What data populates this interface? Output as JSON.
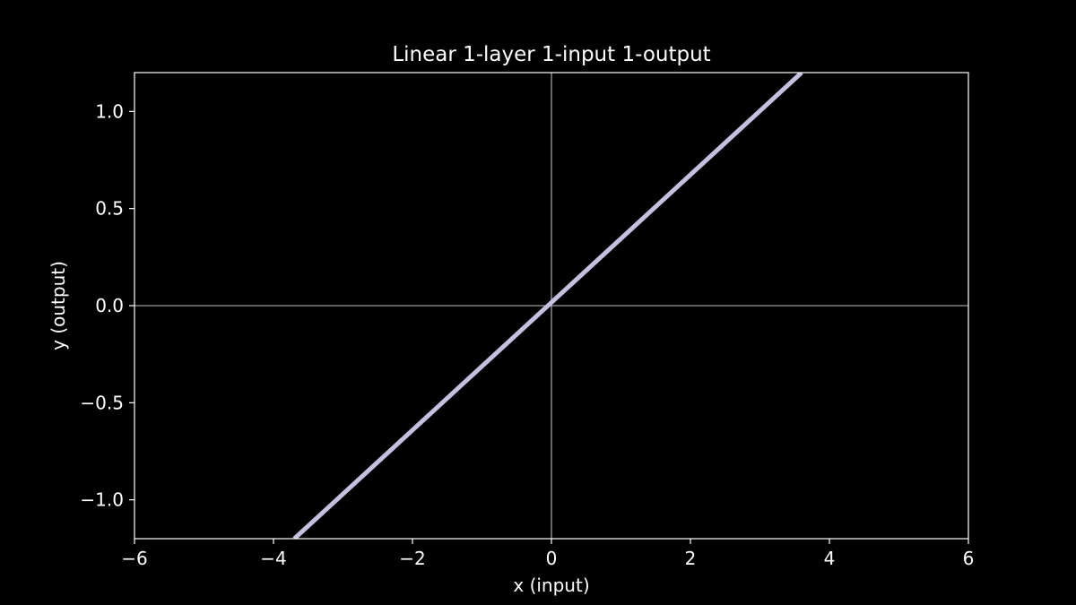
{
  "chart_data": {
    "type": "line",
    "title": "Linear 1-layer 1-input 1-output",
    "xlabel": "x (input)",
    "ylabel": "y (output)",
    "xlim": [
      -6,
      6
    ],
    "ylim": [
      -1.2,
      1.2
    ],
    "x_ticks": [
      -6,
      -4,
      -2,
      0,
      2,
      4,
      6
    ],
    "x_tick_labels": [
      "−6",
      "−4",
      "−2",
      "0",
      "2",
      "4",
      "6"
    ],
    "y_ticks": [
      -1.0,
      -0.5,
      0.0,
      0.5,
      1.0
    ],
    "y_tick_labels": [
      "−1.0",
      "−0.5",
      "0.0",
      "0.5",
      "1.0"
    ],
    "grid": false,
    "reference_lines": {
      "x": 0,
      "y": 0
    },
    "series": [
      {
        "color": "#c3c0e0",
        "x": [
          -3.7,
          3.6
        ],
        "y": [
          -1.2,
          1.2
        ]
      }
    ],
    "colors": {
      "background": "#000000",
      "axes": "#ffffff",
      "text": "#ffffff",
      "reference": "#ffffff"
    }
  }
}
